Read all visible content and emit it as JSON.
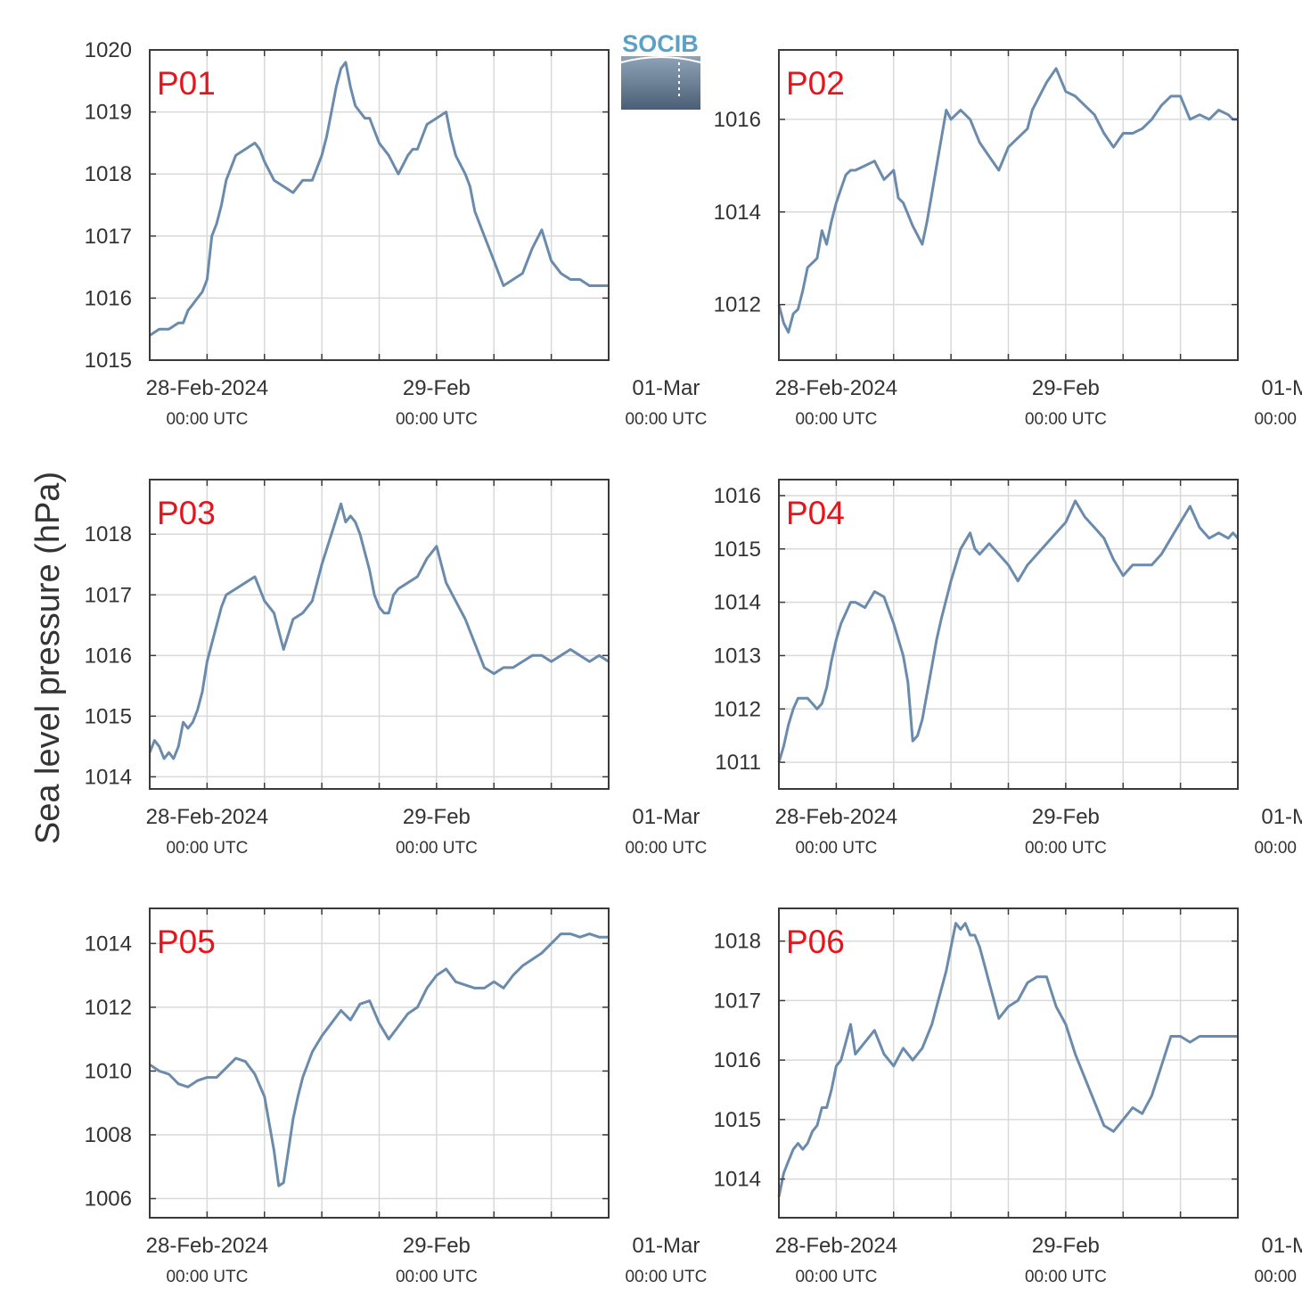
{
  "ylabel": "Sea level pressure (hPa)",
  "logo": {
    "text": "SOCIB"
  },
  "colors": {
    "line": "#6b8bad",
    "panel_label": "#e8141c",
    "grid": "#d9d9d9",
    "axes": "#3a3a3a",
    "logo_text": "#5aa0c8"
  },
  "x_axis": {
    "ticks": [
      {
        "label": "28-Feb-2024",
        "sub": "00:00 UTC",
        "hour": 0
      },
      {
        "label": "29-Feb",
        "sub": "00:00 UTC",
        "hour": 24
      },
      {
        "label": "01-Mar",
        "sub": "00:00 UTC",
        "hour": 48
      }
    ],
    "grid_hours": [
      0,
      6,
      12,
      18,
      24,
      30,
      36,
      42,
      48
    ],
    "range_hours": [
      -6,
      42
    ]
  },
  "chart_data": [
    {
      "type": "line",
      "name": "P01",
      "ylim": [
        1015,
        1020
      ],
      "yticks": [
        1015,
        1016,
        1017,
        1018,
        1019,
        1020
      ],
      "x": [
        -6,
        -5,
        -4,
        -3,
        -2.5,
        -2,
        -1.5,
        -1,
        -0.5,
        0,
        0.5,
        1,
        1.5,
        2,
        2.5,
        3,
        4,
        5,
        5.5,
        6,
        7,
        8,
        9,
        10,
        11,
        12,
        12.5,
        13,
        13.5,
        14,
        14.5,
        15,
        15.5,
        16,
        16.5,
        17,
        17.5,
        18,
        19,
        20,
        21,
        21.5,
        22,
        23,
        24,
        25,
        25.5,
        26,
        27,
        27.5,
        28,
        29,
        30,
        30.5,
        31,
        32,
        33,
        33.5,
        34,
        35,
        36,
        37,
        38,
        39,
        40,
        41,
        41.5,
        42
      ],
      "y": [
        1015.4,
        1015.5,
        1015.5,
        1015.6,
        1015.6,
        1015.8,
        1015.9,
        1016.0,
        1016.1,
        1016.3,
        1017.0,
        1017.2,
        1017.5,
        1017.9,
        1018.1,
        1018.3,
        1018.4,
        1018.5,
        1018.4,
        1018.2,
        1017.9,
        1017.8,
        1017.7,
        1017.9,
        1017.9,
        1018.3,
        1018.6,
        1019.0,
        1019.4,
        1019.7,
        1019.8,
        1019.4,
        1019.1,
        1019.0,
        1018.9,
        1018.9,
        1018.7,
        1018.5,
        1018.3,
        1018.0,
        1018.3,
        1018.4,
        1018.4,
        1018.8,
        1018.9,
        1019.0,
        1018.6,
        1018.3,
        1018.0,
        1017.8,
        1017.4,
        1017.0,
        1016.6,
        1016.4,
        1016.2,
        1016.3,
        1016.4,
        1016.6,
        1016.8,
        1017.1,
        1016.6,
        1016.4,
        1016.3,
        1016.3,
        1016.2,
        1016.2,
        1016.2,
        1016.2
      ]
    },
    {
      "type": "line",
      "name": "P02",
      "ylim": [
        1010.8,
        1017.5
      ],
      "yticks": [
        1012,
        1014,
        1016
      ],
      "x": [
        -6,
        -5.5,
        -5,
        -4.5,
        -4,
        -3.5,
        -3,
        -2.5,
        -2,
        -1.5,
        -1,
        -0.5,
        0,
        0.5,
        1,
        1.5,
        2,
        3,
        4,
        5,
        6,
        6.5,
        7,
        8,
        9,
        9.5,
        10,
        10.5,
        11,
        11.5,
        12,
        12.5,
        13,
        14,
        15,
        16,
        17,
        18,
        19,
        20,
        20.5,
        21,
        22,
        23,
        24,
        25,
        26,
        27,
        28,
        29,
        30,
        31,
        32,
        33,
        34,
        35,
        36,
        37,
        38,
        39,
        40,
        41,
        41.5,
        42
      ],
      "y": [
        1012.0,
        1011.6,
        1011.4,
        1011.8,
        1011.9,
        1012.3,
        1012.8,
        1012.9,
        1013.0,
        1013.6,
        1013.3,
        1013.8,
        1014.2,
        1014.5,
        1014.8,
        1014.9,
        1014.9,
        1015.0,
        1015.1,
        1014.7,
        1014.9,
        1014.3,
        1014.2,
        1013.7,
        1013.3,
        1013.8,
        1014.4,
        1015.0,
        1015.6,
        1016.2,
        1016.0,
        1016.1,
        1016.2,
        1016.0,
        1015.5,
        1015.2,
        1014.9,
        1015.4,
        1015.6,
        1015.8,
        1016.2,
        1016.4,
        1016.8,
        1017.1,
        1016.6,
        1016.5,
        1016.3,
        1016.1,
        1015.7,
        1015.4,
        1015.7,
        1015.7,
        1015.8,
        1016.0,
        1016.3,
        1016.5,
        1016.5,
        1016.0,
        1016.1,
        1016.0,
        1016.2,
        1016.1,
        1016.0,
        1016.0
      ]
    },
    {
      "type": "line",
      "name": "P03",
      "ylim": [
        1013.8,
        1018.9
      ],
      "yticks": [
        1014,
        1015,
        1016,
        1017,
        1018
      ],
      "x": [
        -6,
        -5.5,
        -5,
        -4.5,
        -4,
        -3.5,
        -3,
        -2.5,
        -2,
        -1.5,
        -1,
        -0.5,
        0,
        0.5,
        1,
        1.5,
        2,
        3,
        4,
        5,
        6,
        7,
        8,
        9,
        10,
        11,
        12,
        13,
        14,
        14.5,
        15,
        15.5,
        16,
        16.5,
        17,
        17.5,
        18,
        18.5,
        19,
        19.5,
        20,
        21,
        22,
        23,
        24,
        25,
        26,
        27,
        28,
        29,
        30,
        31,
        32,
        33,
        34,
        35,
        36,
        37,
        38,
        39,
        40,
        41,
        42
      ],
      "y": [
        1014.4,
        1014.6,
        1014.5,
        1014.3,
        1014.4,
        1014.3,
        1014.5,
        1014.9,
        1014.8,
        1014.9,
        1015.1,
        1015.4,
        1015.9,
        1016.2,
        1016.5,
        1016.8,
        1017.0,
        1017.1,
        1017.2,
        1017.3,
        1016.9,
        1016.7,
        1016.1,
        1016.6,
        1016.7,
        1016.9,
        1017.5,
        1018.0,
        1018.5,
        1018.2,
        1018.3,
        1018.2,
        1018.0,
        1017.7,
        1017.4,
        1017.0,
        1016.8,
        1016.7,
        1016.7,
        1017.0,
        1017.1,
        1017.2,
        1017.3,
        1017.6,
        1017.8,
        1017.2,
        1016.9,
        1016.6,
        1016.2,
        1015.8,
        1015.7,
        1015.8,
        1015.8,
        1015.9,
        1016.0,
        1016.0,
        1015.9,
        1016.0,
        1016.1,
        1016.0,
        1015.9,
        1016.0,
        1015.9
      ]
    },
    {
      "type": "line",
      "name": "P04",
      "ylim": [
        1010.5,
        1016.3
      ],
      "yticks": [
        1011,
        1012,
        1013,
        1014,
        1015,
        1016
      ],
      "x": [
        -6,
        -5.5,
        -5,
        -4.5,
        -4,
        -3.5,
        -3,
        -2.5,
        -2,
        -1.5,
        -1,
        -0.5,
        0,
        0.5,
        1,
        1.5,
        2,
        3,
        4,
        5,
        6,
        7,
        7.5,
        8,
        8.5,
        9,
        9.5,
        10,
        10.5,
        11,
        12,
        13,
        14,
        14.5,
        15,
        16,
        17,
        18,
        19,
        20,
        21,
        22,
        23,
        24,
        25,
        26,
        27,
        28,
        29,
        30,
        31,
        32,
        33,
        34,
        35,
        36,
        37,
        38,
        39,
        40,
        41,
        41.5,
        42
      ],
      "y": [
        1011.0,
        1011.3,
        1011.7,
        1012.0,
        1012.2,
        1012.2,
        1012.2,
        1012.1,
        1012.0,
        1012.1,
        1012.4,
        1012.9,
        1013.3,
        1013.6,
        1013.8,
        1014.0,
        1014.0,
        1013.9,
        1014.2,
        1014.1,
        1013.6,
        1013.0,
        1012.5,
        1011.4,
        1011.5,
        1011.8,
        1012.3,
        1012.8,
        1013.3,
        1013.7,
        1014.4,
        1015.0,
        1015.3,
        1015.0,
        1014.9,
        1015.1,
        1014.9,
        1014.7,
        1014.4,
        1014.7,
        1014.9,
        1015.1,
        1015.3,
        1015.5,
        1015.9,
        1015.6,
        1015.4,
        1015.2,
        1014.8,
        1014.5,
        1014.7,
        1014.7,
        1014.7,
        1014.9,
        1015.2,
        1015.5,
        1015.8,
        1015.4,
        1015.2,
        1015.3,
        1015.2,
        1015.3,
        1015.2
      ]
    },
    {
      "type": "line",
      "name": "P05",
      "ylim": [
        1005.4,
        1015.1
      ],
      "yticks": [
        1006,
        1008,
        1010,
        1012,
        1014
      ],
      "x": [
        -6,
        -5,
        -4,
        -3,
        -2,
        -1,
        0,
        1,
        2,
        3,
        4,
        5,
        6,
        7,
        7.5,
        8,
        8.5,
        9,
        9.5,
        10,
        11,
        12,
        13,
        14,
        15,
        16,
        17,
        18,
        19,
        20,
        21,
        22,
        23,
        24,
        25,
        26,
        27,
        28,
        29,
        30,
        31,
        32,
        33,
        34,
        35,
        36,
        37,
        38,
        39,
        40,
        41,
        42
      ],
      "y": [
        1010.2,
        1010.0,
        1009.9,
        1009.6,
        1009.5,
        1009.7,
        1009.8,
        1009.8,
        1010.1,
        1010.4,
        1010.3,
        1009.9,
        1009.2,
        1007.5,
        1006.4,
        1006.5,
        1007.5,
        1008.5,
        1009.2,
        1009.8,
        1010.6,
        1011.1,
        1011.5,
        1011.9,
        1011.6,
        1012.1,
        1012.2,
        1011.5,
        1011.0,
        1011.4,
        1011.8,
        1012.0,
        1012.6,
        1013.0,
        1013.2,
        1012.8,
        1012.7,
        1012.6,
        1012.6,
        1012.8,
        1012.6,
        1013.0,
        1013.3,
        1013.5,
        1013.7,
        1014.0,
        1014.3,
        1014.3,
        1014.2,
        1014.3,
        1014.2,
        1014.2
      ]
    },
    {
      "type": "line",
      "name": "P06",
      "ylim": [
        1013.35,
        1018.55
      ],
      "yticks": [
        1014,
        1015,
        1016,
        1017,
        1018
      ],
      "x": [
        -6,
        -5.5,
        -5,
        -4.5,
        -4,
        -3.5,
        -3,
        -2.5,
        -2,
        -1.5,
        -1,
        -0.5,
        0,
        0.5,
        1,
        1.5,
        2,
        3,
        4,
        5,
        6,
        7,
        8,
        9,
        9.5,
        10,
        10.5,
        11,
        11.5,
        12,
        12.5,
        13,
        13.5,
        14,
        14.5,
        15,
        15.5,
        16,
        17,
        18,
        19,
        20,
        21,
        22,
        23,
        24,
        25,
        26,
        27,
        28,
        29,
        30,
        31,
        32,
        33,
        34,
        35,
        36,
        37,
        38,
        39,
        40,
        41,
        42
      ],
      "y": [
        1013.7,
        1014.1,
        1014.3,
        1014.5,
        1014.6,
        1014.5,
        1014.6,
        1014.8,
        1014.9,
        1015.2,
        1015.2,
        1015.5,
        1015.9,
        1016.0,
        1016.3,
        1016.6,
        1016.1,
        1016.3,
        1016.5,
        1016.1,
        1015.9,
        1016.2,
        1016.0,
        1016.2,
        1016.4,
        1016.6,
        1016.9,
        1017.2,
        1017.5,
        1017.9,
        1018.3,
        1018.2,
        1018.3,
        1018.1,
        1018.1,
        1017.9,
        1017.6,
        1017.3,
        1016.7,
        1016.9,
        1017.0,
        1017.3,
        1017.4,
        1017.4,
        1016.9,
        1016.6,
        1016.1,
        1015.7,
        1015.3,
        1014.9,
        1014.8,
        1015.0,
        1015.2,
        1015.1,
        1015.4,
        1015.9,
        1016.4,
        1016.4,
        1016.3,
        1016.4,
        1016.4,
        1016.4,
        1016.4,
        1016.4
      ]
    }
  ]
}
